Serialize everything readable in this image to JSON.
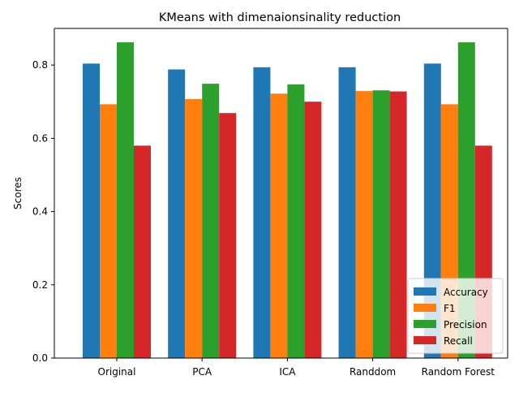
{
  "chart_data": {
    "type": "bar",
    "title": "KMeans with dimenaionsinality reduction",
    "xlabel": "",
    "ylabel": "Scores",
    "categories": [
      "Original",
      "PCA",
      "ICA",
      "Randdom",
      "Random Forest"
    ],
    "series": [
      {
        "name": "Accuracy",
        "color": "#1f77b4",
        "values": [
          0.804,
          0.788,
          0.794,
          0.794,
          0.804
        ]
      },
      {
        "name": "F1",
        "color": "#ff7f0e",
        "values": [
          0.693,
          0.707,
          0.722,
          0.729,
          0.693
        ]
      },
      {
        "name": "Precision",
        "color": "#2ca02c",
        "values": [
          0.862,
          0.749,
          0.747,
          0.731,
          0.862
        ]
      },
      {
        "name": "Recall",
        "color": "#d62728",
        "values": [
          0.58,
          0.669,
          0.7,
          0.728,
          0.58
        ]
      }
    ],
    "ylim": [
      0,
      0.9
    ],
    "yticks": [
      "0.0",
      "0.2",
      "0.4",
      "0.6",
      "0.8"
    ],
    "grid": false,
    "legend_position": "lower-right"
  }
}
